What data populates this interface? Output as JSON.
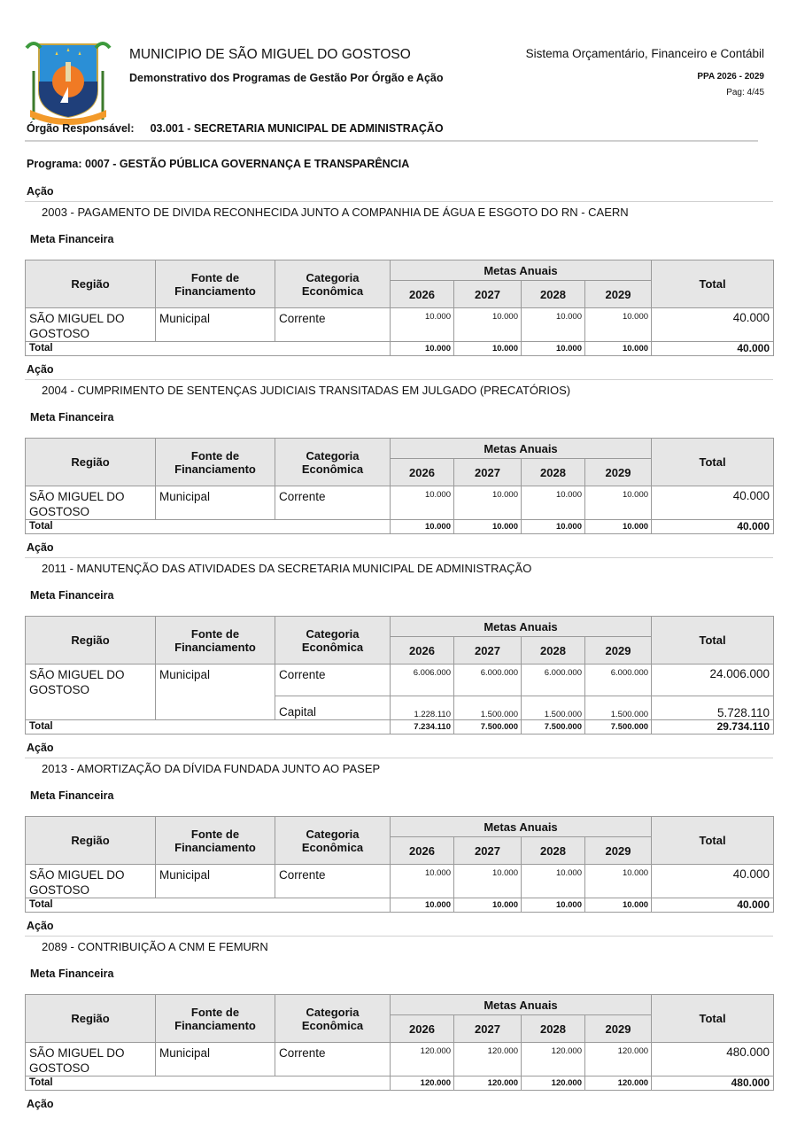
{
  "header": {
    "title": "MUNICIPIO DE SÃO MIGUEL DO GOSTOSO",
    "subtitle": "Demonstrativo dos Programas de Gestão Por Órgão e Ação",
    "system": "Sistema Orçamentário, Financeiro e Contábil",
    "ppa": "PPA 2026 - 2029",
    "page": "Pag: 4/45",
    "logo_text": "SÃO MIGUEL DO GOSTOSO"
  },
  "orgao": {
    "label": "Órgão Responsável:",
    "value": "03.001 - SECRETARIA  MUNICIPAL DE ADMINISTRAÇÃO"
  },
  "programa": "Programa: 0007 - GESTÃO PÚBLICA GOVERNANÇA E TRANSPARÊNCIA",
  "labels": {
    "acao": "Ação",
    "meta": "Meta Financeira",
    "regiao": "Região",
    "fonte": "Fonte de Financiamento",
    "categoria": "Categoria Econômica",
    "metas_anuais": "Metas Anuais",
    "total": "Total",
    "years": [
      "2026",
      "2027",
      "2028",
      "2029"
    ]
  },
  "sections": [
    {
      "acao": "2003 - PAGAMENTO DE DIVIDA RECONHECIDA JUNTO A COMPANHIA DE ÁGUA E ESGOTO DO RN - CAERN",
      "regiao": "SÃO MIGUEL DO GOSTOSO",
      "fonte": "Municipal",
      "rows": [
        {
          "categoria": "Corrente",
          "values": [
            "10.000",
            "10.000",
            "10.000",
            "10.000"
          ],
          "total": "40.000"
        }
      ],
      "totals": {
        "values": [
          "10.000",
          "10.000",
          "10.000",
          "10.000"
        ],
        "total": "40.000"
      }
    },
    {
      "acao": "2004 - CUMPRIMENTO DE SENTENÇAS JUDICIAIS TRANSITADAS EM JULGADO (PRECATÓRIOS)",
      "regiao": "SÃO MIGUEL DO GOSTOSO",
      "fonte": "Municipal",
      "rows": [
        {
          "categoria": "Corrente",
          "values": [
            "10.000",
            "10.000",
            "10.000",
            "10.000"
          ],
          "total": "40.000"
        }
      ],
      "totals": {
        "values": [
          "10.000",
          "10.000",
          "10.000",
          "10.000"
        ],
        "total": "40.000"
      }
    },
    {
      "acao": "2011 - MANUTENÇÃO DAS ATIVIDADES DA SECRETARIA MUNICIPAL DE ADMINISTRAÇÃO",
      "regiao": "SÃO MIGUEL DO GOSTOSO",
      "fonte": "Municipal",
      "rows": [
        {
          "categoria": "Corrente",
          "values": [
            "6.006.000",
            "6.000.000",
            "6.000.000",
            "6.000.000"
          ],
          "total": "24.006.000"
        },
        {
          "categoria": "Capital",
          "values": [
            "1.228.110",
            "1.500.000",
            "1.500.000",
            "1.500.000"
          ],
          "total": "5.728.110"
        }
      ],
      "totals": {
        "values": [
          "7.234.110",
          "7.500.000",
          "7.500.000",
          "7.500.000"
        ],
        "total": "29.734.110"
      }
    },
    {
      "acao": "2013 - AMORTIZAÇÃO DA DÍVIDA FUNDADA JUNTO AO PASEP",
      "regiao": "SÃO MIGUEL DO GOSTOSO",
      "fonte": "Municipal",
      "rows": [
        {
          "categoria": "Corrente",
          "values": [
            "10.000",
            "10.000",
            "10.000",
            "10.000"
          ],
          "total": "40.000"
        }
      ],
      "totals": {
        "values": [
          "10.000",
          "10.000",
          "10.000",
          "10.000"
        ],
        "total": "40.000"
      }
    },
    {
      "acao": "2089 - CONTRIBUIÇÃO A CNM E FEMURN",
      "regiao": "SÃO MIGUEL DO GOSTOSO",
      "fonte": "Municipal",
      "rows": [
        {
          "categoria": "Corrente",
          "values": [
            "120.000",
            "120.000",
            "120.000",
            "120.000"
          ],
          "total": "480.000"
        }
      ],
      "totals": {
        "values": [
          "120.000",
          "120.000",
          "120.000",
          "120.000"
        ],
        "total": "480.000"
      }
    }
  ],
  "trailing_acao": true
}
